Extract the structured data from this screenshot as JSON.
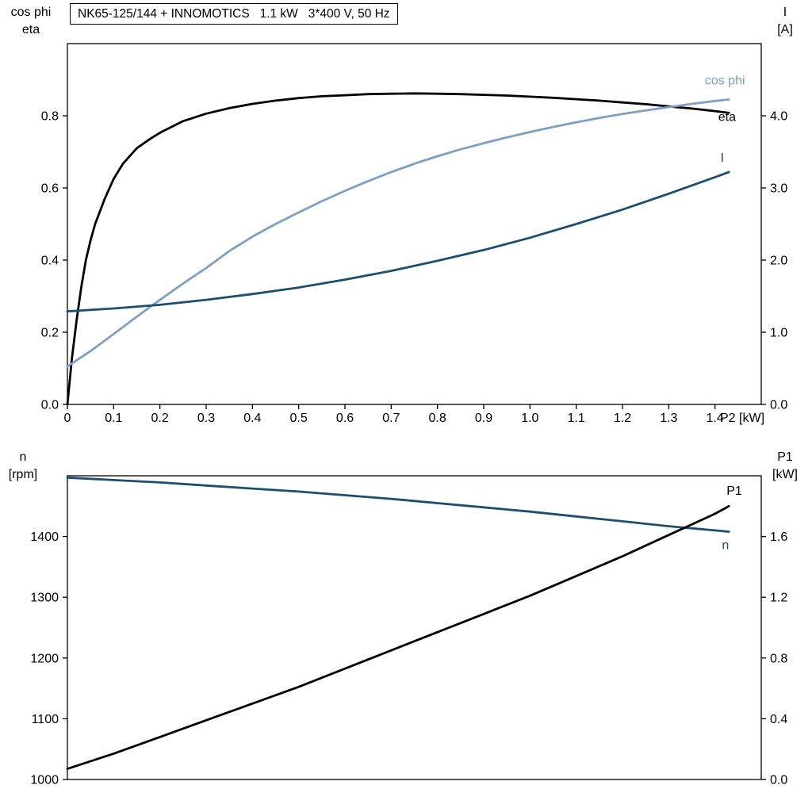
{
  "header": {
    "title_box": "NK65-125/144 + INNOMOTICS   1.1 kW   3*400 V, 50 Hz"
  },
  "corner_labels": {
    "top_left": {
      "line1": "cos phi",
      "line2": "eta"
    },
    "top_right": {
      "line1": "I",
      "line2": "[A]"
    },
    "bottom_left": {
      "line1": "n",
      "line2": "[rpm]"
    },
    "bottom_right": {
      "line1": "P1",
      "line2": "[kW]"
    }
  },
  "colors": {
    "black": "#000000",
    "light_blue": "#7da0c4",
    "dark_blue": "#1b4f72"
  },
  "chart_data": [
    {
      "type": "line",
      "title": "NK65-125/144 + INNOMOTICS   1.1 kW   3*400 V, 50 Hz",
      "x_axis": {
        "label": "P2 [kW]",
        "range": [
          0,
          1.5
        ],
        "ticks": [
          0,
          0.1,
          0.2,
          0.3,
          0.4,
          0.5,
          0.6,
          0.7,
          0.8,
          0.9,
          1.0,
          1.1,
          1.2,
          1.3,
          1.4
        ],
        "tick_labels": [
          "0",
          "0.1",
          "0.2",
          "0.3",
          "0.4",
          "0.5",
          "0.6",
          "0.7",
          "0.8",
          "0.9",
          "1.0",
          "1.1",
          "1.2",
          "1.3",
          "1.4"
        ]
      },
      "left_axis": {
        "name": "cos phi / eta",
        "range": [
          0,
          1.0
        ],
        "ticks": [
          0,
          0.2,
          0.4,
          0.6,
          0.8
        ],
        "tick_labels": [
          "0.0",
          "0.2",
          "0.4",
          "0.6",
          "0.8"
        ]
      },
      "right_axis": {
        "name": "I [A]",
        "range": [
          0,
          5.0
        ],
        "ticks": [
          0,
          1,
          2,
          3,
          4
        ],
        "tick_labels": [
          "0.0",
          "1.0",
          "2.0",
          "3.0",
          "4.0"
        ]
      },
      "grid": false,
      "series": [
        {
          "name": "eta",
          "label": "eta",
          "axis": "left",
          "color": "#000000",
          "label_pos": [
            1.407,
            0.797
          ],
          "points": [
            [
              0,
              0
            ],
            [
              0.01,
              0.13
            ],
            [
              0.02,
              0.235
            ],
            [
              0.03,
              0.325
            ],
            [
              0.04,
              0.4
            ],
            [
              0.05,
              0.455
            ],
            [
              0.06,
              0.5
            ],
            [
              0.08,
              0.568
            ],
            [
              0.1,
              0.625
            ],
            [
              0.12,
              0.667
            ],
            [
              0.15,
              0.71
            ],
            [
              0.18,
              0.737
            ],
            [
              0.2,
              0.753
            ],
            [
              0.25,
              0.785
            ],
            [
              0.3,
              0.806
            ],
            [
              0.35,
              0.821
            ],
            [
              0.4,
              0.833
            ],
            [
              0.45,
              0.842
            ],
            [
              0.5,
              0.849
            ],
            [
              0.55,
              0.854
            ],
            [
              0.6,
              0.857
            ],
            [
              0.65,
              0.86
            ],
            [
              0.7,
              0.861
            ],
            [
              0.75,
              0.862
            ],
            [
              0.8,
              0.861
            ],
            [
              0.85,
              0.86
            ],
            [
              0.9,
              0.858
            ],
            [
              0.95,
              0.856
            ],
            [
              1.0,
              0.853
            ],
            [
              1.05,
              0.85
            ],
            [
              1.1,
              0.846
            ],
            [
              1.15,
              0.842
            ],
            [
              1.2,
              0.837
            ],
            [
              1.25,
              0.832
            ],
            [
              1.3,
              0.826
            ],
            [
              1.35,
              0.82
            ],
            [
              1.4,
              0.813
            ],
            [
              1.43,
              0.808
            ]
          ]
        },
        {
          "name": "cos-phi",
          "label": "cos phi",
          "axis": "left",
          "color": "#7da0c4",
          "label_pos": [
            1.378,
            0.898
          ],
          "points": [
            [
              0,
              0.105
            ],
            [
              0.05,
              0.148
            ],
            [
              0.1,
              0.195
            ],
            [
              0.15,
              0.243
            ],
            [
              0.2,
              0.29
            ],
            [
              0.25,
              0.335
            ],
            [
              0.3,
              0.378
            ],
            [
              0.35,
              0.425
            ],
            [
              0.4,
              0.465
            ],
            [
              0.45,
              0.5
            ],
            [
              0.5,
              0.532
            ],
            [
              0.55,
              0.563
            ],
            [
              0.6,
              0.592
            ],
            [
              0.65,
              0.619
            ],
            [
              0.7,
              0.644
            ],
            [
              0.75,
              0.667
            ],
            [
              0.8,
              0.688
            ],
            [
              0.85,
              0.707
            ],
            [
              0.9,
              0.724
            ],
            [
              0.95,
              0.74
            ],
            [
              1.0,
              0.755
            ],
            [
              1.05,
              0.769
            ],
            [
              1.1,
              0.782
            ],
            [
              1.15,
              0.794
            ],
            [
              1.2,
              0.805
            ],
            [
              1.25,
              0.815
            ],
            [
              1.3,
              0.824
            ],
            [
              1.35,
              0.833
            ],
            [
              1.4,
              0.841
            ],
            [
              1.43,
              0.845
            ]
          ]
        },
        {
          "name": "i",
          "label": "I",
          "axis": "right",
          "color": "#1b4f72",
          "label_pos": [
            1.412,
            3.42
          ],
          "points": [
            [
              0,
              1.29
            ],
            [
              0.1,
              1.33
            ],
            [
              0.2,
              1.38
            ],
            [
              0.3,
              1.45
            ],
            [
              0.4,
              1.53
            ],
            [
              0.5,
              1.62
            ],
            [
              0.6,
              1.73
            ],
            [
              0.7,
              1.85
            ],
            [
              0.8,
              1.99
            ],
            [
              0.9,
              2.14
            ],
            [
              1.0,
              2.31
            ],
            [
              1.1,
              2.5
            ],
            [
              1.2,
              2.7
            ],
            [
              1.3,
              2.92
            ],
            [
              1.4,
              3.15
            ],
            [
              1.43,
              3.22
            ]
          ]
        }
      ]
    },
    {
      "type": "line",
      "title": "",
      "x_axis": {
        "label": "",
        "range": [
          0,
          1.5
        ],
        "ticks": [],
        "tick_labels": []
      },
      "left_axis": {
        "name": "n [rpm]",
        "range": [
          1000,
          1500
        ],
        "ticks": [
          1000,
          1100,
          1200,
          1300,
          1400
        ],
        "tick_labels": [
          "1000",
          "1100",
          "1200",
          "1300",
          "1400"
        ]
      },
      "right_axis": {
        "name": "P1 [kW]",
        "range": [
          0,
          2.0
        ],
        "ticks": [
          0,
          0.4,
          0.8,
          1.2,
          1.6
        ],
        "tick_labels": [
          "0.0",
          "0.4",
          "0.8",
          "1.2",
          "1.6"
        ]
      },
      "grid": false,
      "series": [
        {
          "name": "n",
          "label": "n",
          "axis": "left",
          "color": "#1b4f72",
          "label_pos": [
            1.415,
            1386
          ],
          "points": [
            [
              0,
              1497
            ],
            [
              0.1,
              1493
            ],
            [
              0.2,
              1489
            ],
            [
              0.3,
              1484
            ],
            [
              0.4,
              1479
            ],
            [
              0.5,
              1474
            ],
            [
              0.6,
              1468
            ],
            [
              0.7,
              1462
            ],
            [
              0.8,
              1455
            ],
            [
              0.9,
              1448
            ],
            [
              1.0,
              1441
            ],
            [
              1.1,
              1433
            ],
            [
              1.2,
              1425
            ],
            [
              1.3,
              1417
            ],
            [
              1.4,
              1410
            ],
            [
              1.43,
              1408
            ]
          ]
        },
        {
          "name": "p1",
          "label": "P1",
          "axis": "right",
          "color": "#000000",
          "label_pos": [
            1.425,
            1.9
          ],
          "points": [
            [
              0,
              0.07
            ],
            [
              0.1,
              0.17
            ],
            [
              0.2,
              0.28
            ],
            [
              0.3,
              0.39
            ],
            [
              0.4,
              0.5
            ],
            [
              0.5,
              0.61
            ],
            [
              0.6,
              0.73
            ],
            [
              0.7,
              0.85
            ],
            [
              0.8,
              0.97
            ],
            [
              0.9,
              1.09
            ],
            [
              1.0,
              1.21
            ],
            [
              1.1,
              1.34
            ],
            [
              1.2,
              1.47
            ],
            [
              1.3,
              1.61
            ],
            [
              1.4,
              1.75
            ],
            [
              1.43,
              1.8
            ]
          ]
        }
      ]
    }
  ]
}
